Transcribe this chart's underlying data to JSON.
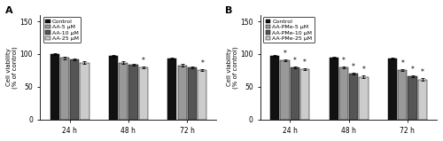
{
  "panel_A": {
    "title": "A",
    "groups": [
      "24 h",
      "48 h",
      "72 h"
    ],
    "series": [
      "Control",
      "AA-5 μM",
      "AA-10 μM",
      "AA-25 μM"
    ],
    "colors": [
      "#111111",
      "#999999",
      "#555555",
      "#cccccc"
    ],
    "values": [
      [
        100,
        94,
        92,
        87
      ],
      [
        97,
        87,
        84,
        80
      ],
      [
        93,
        83,
        80,
        76
      ]
    ],
    "errors": [
      [
        1.2,
        1.5,
        1.5,
        1.5
      ],
      [
        1.2,
        1.5,
        1.5,
        1.5
      ],
      [
        1.2,
        1.5,
        1.5,
        1.5
      ]
    ],
    "significant": [
      [
        false,
        false,
        false,
        false
      ],
      [
        false,
        false,
        false,
        true
      ],
      [
        false,
        false,
        false,
        true
      ]
    ],
    "ylabel": "Cell viability\n(% of control)",
    "ylim": [
      0,
      160
    ],
    "yticks": [
      0,
      50,
      100,
      150
    ]
  },
  "panel_B": {
    "title": "B",
    "groups": [
      "24 h",
      "48 h",
      "72 h"
    ],
    "series": [
      "Control",
      "AA-PMe-5 μM",
      "AA-PMe-10 μM",
      "AA-PMe-25 μM"
    ],
    "colors": [
      "#111111",
      "#999999",
      "#555555",
      "#cccccc"
    ],
    "values": [
      [
        97,
        91,
        80,
        77
      ],
      [
        95,
        80,
        70,
        65
      ],
      [
        93,
        76,
        66,
        61
      ]
    ],
    "errors": [
      [
        1.2,
        1.5,
        1.5,
        1.5
      ],
      [
        1.2,
        1.5,
        1.5,
        2.0
      ],
      [
        1.2,
        1.5,
        1.5,
        2.0
      ]
    ],
    "significant": [
      [
        false,
        true,
        true,
        true
      ],
      [
        false,
        true,
        true,
        true
      ],
      [
        false,
        true,
        true,
        true
      ]
    ],
    "ylabel": "Cell viability\n(% of control)",
    "ylim": [
      0,
      160
    ],
    "yticks": [
      0,
      50,
      100,
      150
    ]
  }
}
